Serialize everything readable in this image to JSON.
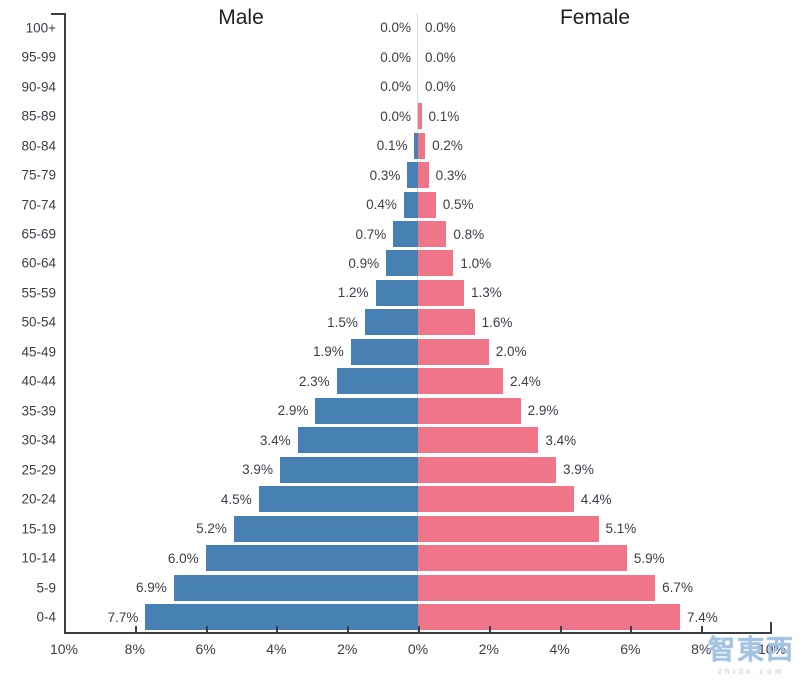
{
  "chart_data": {
    "type": "bar",
    "subtype": "population-pyramid",
    "title": "",
    "xlabel": "",
    "ylabel": "",
    "categories": [
      "0-4",
      "5-9",
      "10-14",
      "15-19",
      "20-24",
      "25-29",
      "30-34",
      "35-39",
      "40-44",
      "45-49",
      "50-54",
      "55-59",
      "60-64",
      "65-69",
      "70-74",
      "75-79",
      "80-84",
      "85-89",
      "90-94",
      "95-99",
      "100+"
    ],
    "series": [
      {
        "name": "Male",
        "side": "left",
        "color": "#4780B2",
        "values": [
          7.7,
          6.9,
          6.0,
          5.2,
          4.5,
          3.9,
          3.4,
          2.9,
          2.3,
          1.9,
          1.5,
          1.2,
          0.9,
          0.7,
          0.4,
          0.3,
          0.1,
          0.0,
          0.0,
          0.0,
          0.0
        ],
        "labels": [
          "7.7%",
          "6.9%",
          "6.0%",
          "5.2%",
          "4.5%",
          "3.9%",
          "3.4%",
          "2.9%",
          "2.3%",
          "1.9%",
          "1.5%",
          "1.2%",
          "0.9%",
          "0.7%",
          "0.4%",
          "0.3%",
          "0.1%",
          "0.0%",
          "0.0%",
          "0.0%",
          "0.0%"
        ]
      },
      {
        "name": "Female",
        "side": "right",
        "color": "#F07588",
        "values": [
          7.4,
          6.7,
          5.9,
          5.1,
          4.4,
          3.9,
          3.4,
          2.9,
          2.4,
          2.0,
          1.6,
          1.3,
          1.0,
          0.8,
          0.5,
          0.3,
          0.2,
          0.1,
          0.0,
          0.0,
          0.0
        ],
        "labels": [
          "7.4%",
          "6.7%",
          "5.9%",
          "5.1%",
          "4.4%",
          "3.9%",
          "3.4%",
          "2.9%",
          "2.4%",
          "2.0%",
          "1.6%",
          "1.3%",
          "1.0%",
          "0.8%",
          "0.5%",
          "0.3%",
          "0.2%",
          "0.1%",
          "0.0%",
          "0.0%",
          "0.0%"
        ]
      }
    ],
    "value_labels": true,
    "x_axis": {
      "labels": [
        "10%",
        "8%",
        "6%",
        "4%",
        "2%",
        "0%",
        "2%",
        "4%",
        "6%",
        "8%",
        "10%"
      ],
      "max_percent": 10,
      "tick_step": 2
    },
    "legend": "none",
    "grid": "center-line-only"
  },
  "watermark": {
    "logo_text": "智東西",
    "url_text": "zhidx.com"
  },
  "colors": {
    "male": "#4780B2",
    "female": "#F07588",
    "axis": "#3d3d46",
    "text": "#3c3c4a",
    "gridline": "#d8d8d8",
    "watermark": "#a5c6e4"
  }
}
